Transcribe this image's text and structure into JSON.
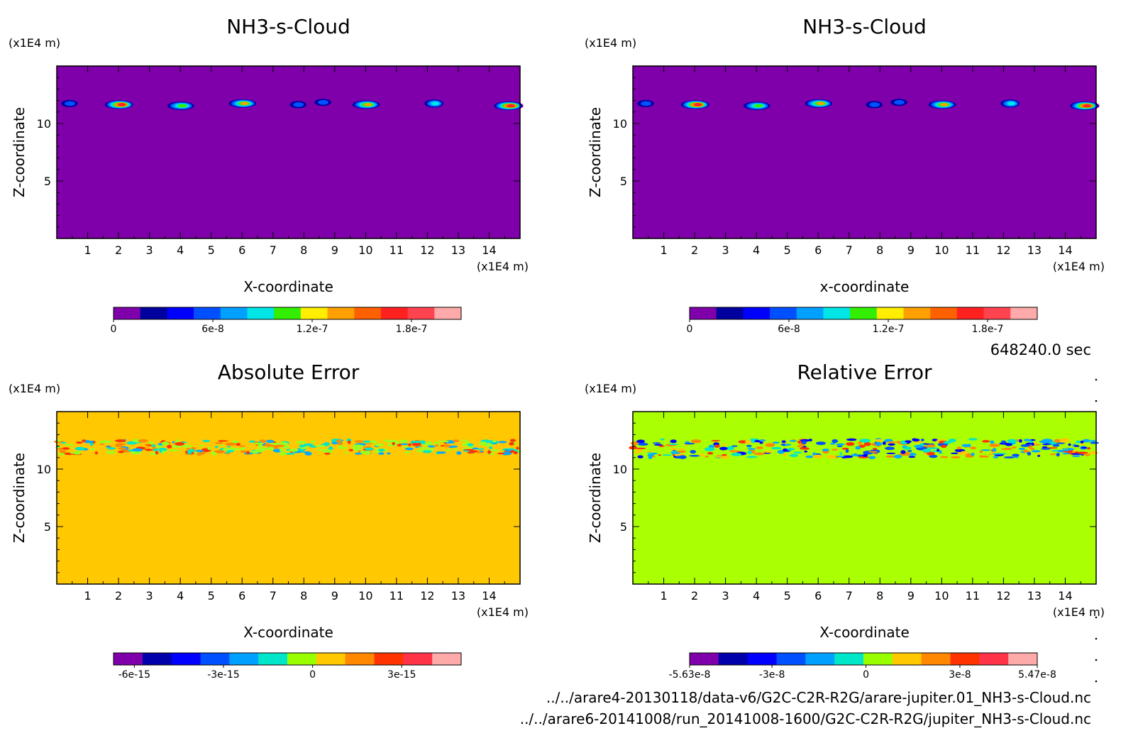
{
  "figure": {
    "time_label": "648240.0 sec",
    "file_lines": [
      "../../arare4-20130118/data-v6/G2C-C2R-R2G/arare-jupiter.01_NH3-s-Cloud.nc",
      "../../arare6-20141008/run_20141008-1600/G2C-C2R-R2G/jupiter_NH3-s-Cloud.nc"
    ]
  },
  "chart_data": [
    {
      "type": "heatmap",
      "title": "NH3-s-Cloud",
      "xlabel": "X-coordinate",
      "ylabel": "Z-coordinate",
      "x_unit": "(x1E4 m)",
      "y_unit": "(x1E4 m)",
      "xlim": [
        0,
        15
      ],
      "ylim": [
        0,
        15
      ],
      "x_ticks": [
        1,
        2,
        3,
        4,
        5,
        6,
        7,
        8,
        9,
        10,
        11,
        12,
        13,
        14
      ],
      "y_ticks": [
        5,
        10
      ],
      "background_color": "#7f00aa",
      "clouds": [
        {
          "x": 0.4,
          "z": 11.8,
          "peak": 6e-08
        },
        {
          "x": 2.0,
          "z": 11.7,
          "peak": 1.8e-07
        },
        {
          "x": 4.0,
          "z": 11.6,
          "peak": 1.2e-07
        },
        {
          "x": 6.0,
          "z": 11.8,
          "peak": 1.4e-07
        },
        {
          "x": 7.8,
          "z": 11.7,
          "peak": 6e-08
        },
        {
          "x": 8.6,
          "z": 11.9,
          "peak": 6e-08
        },
        {
          "x": 10.0,
          "z": 11.7,
          "peak": 1.3e-07
        },
        {
          "x": 12.2,
          "z": 11.8,
          "peak": 9e-08
        },
        {
          "x": 14.6,
          "z": 11.6,
          "peak": 1.8e-07
        }
      ],
      "colorbar": {
        "colors": [
          "#7f00aa",
          "#00009f",
          "#0000ff",
          "#0050ff",
          "#00a0ff",
          "#00e6e6",
          "#33ee00",
          "#ffee00",
          "#ffa000",
          "#ff6000",
          "#ff2020",
          "#ff4450",
          "#ffaaaa"
        ],
        "range": [
          0,
          2.1e-07
        ],
        "ticks": [
          {
            "value": 0,
            "label": "0"
          },
          {
            "value": 6e-08,
            "label": "6e-8"
          },
          {
            "value": 1.2e-07,
            "label": "1.2e-7"
          },
          {
            "value": 1.8e-07,
            "label": "1.8e-7"
          }
        ]
      }
    },
    {
      "type": "heatmap",
      "title": "NH3-s-Cloud",
      "xlabel": "x-coordinate",
      "ylabel": "Z-coordinate",
      "x_unit": "(x1E4 m)",
      "y_unit": "(x1E4 m)",
      "xlim": [
        0,
        15
      ],
      "ylim": [
        0,
        15
      ],
      "x_ticks": [
        1,
        2,
        3,
        4,
        5,
        6,
        7,
        8,
        9,
        10,
        11,
        12,
        13,
        14
      ],
      "y_ticks": [
        5,
        10
      ],
      "background_color": "#7f00aa",
      "clouds": [
        {
          "x": 0.4,
          "z": 11.8,
          "peak": 6e-08
        },
        {
          "x": 2.0,
          "z": 11.7,
          "peak": 1.8e-07
        },
        {
          "x": 4.0,
          "z": 11.6,
          "peak": 1.2e-07
        },
        {
          "x": 6.0,
          "z": 11.8,
          "peak": 1.4e-07
        },
        {
          "x": 7.8,
          "z": 11.7,
          "peak": 6e-08
        },
        {
          "x": 8.6,
          "z": 11.9,
          "peak": 6e-08
        },
        {
          "x": 10.0,
          "z": 11.7,
          "peak": 1.3e-07
        },
        {
          "x": 12.2,
          "z": 11.8,
          "peak": 9e-08
        },
        {
          "x": 14.6,
          "z": 11.6,
          "peak": 1.8e-07
        }
      ],
      "colorbar": {
        "colors": [
          "#7f00aa",
          "#00009f",
          "#0000ff",
          "#0050ff",
          "#00a0ff",
          "#00e6e6",
          "#33ee00",
          "#ffee00",
          "#ffa000",
          "#ff6000",
          "#ff2020",
          "#ff4450",
          "#ffaaaa"
        ],
        "range": [
          0,
          2.1e-07
        ],
        "ticks": [
          {
            "value": 0,
            "label": "0"
          },
          {
            "value": 6e-08,
            "label": "6e-8"
          },
          {
            "value": 1.2e-07,
            "label": "1.2e-7"
          },
          {
            "value": 1.8e-07,
            "label": "1.8e-7"
          }
        ]
      }
    },
    {
      "type": "heatmap",
      "title": "Absolute Error",
      "xlabel": "X-coordinate",
      "ylabel": "Z-coordinate",
      "x_unit": "(x1E4 m)",
      "y_unit": "(x1E4 m)",
      "xlim": [
        0,
        15
      ],
      "ylim": [
        0,
        15
      ],
      "x_ticks": [
        1,
        2,
        3,
        4,
        5,
        6,
        7,
        8,
        9,
        10,
        11,
        12,
        13,
        14
      ],
      "y_ticks": [
        5,
        10
      ],
      "background_color": "#ffc800",
      "noise_band_z": [
        11.3,
        12.5
      ],
      "noise_colors": [
        "#99ff22",
        "#99ff22",
        "#99ff22",
        "#00e6c8",
        "#00aaff",
        "#ff3300",
        "#ff8800"
      ],
      "colorbar": {
        "colors": [
          "#7f00aa",
          "#0000aa",
          "#0000ff",
          "#0050ff",
          "#00a0ff",
          "#00e6c8",
          "#99ff00",
          "#ffc800",
          "#ff8800",
          "#ff3300",
          "#ff3348",
          "#ffaaaa"
        ],
        "range": [
          -6.7e-15,
          5e-15
        ],
        "ticks": [
          {
            "value": -6e-15,
            "label": "-6e-15"
          },
          {
            "value": -3e-15,
            "label": "-3e-15"
          },
          {
            "value": 0,
            "label": "0"
          },
          {
            "value": 3e-15,
            "label": "3e-15"
          }
        ]
      }
    },
    {
      "type": "heatmap",
      "title": "Relative Error",
      "xlabel": "X-coordinate",
      "ylabel": "Z-coordinate",
      "x_unit": "(x1E4 m)",
      "y_unit": "(x1E4 m)",
      "xlim": [
        0,
        15
      ],
      "ylim": [
        0,
        15
      ],
      "x_ticks": [
        1,
        2,
        3,
        4,
        5,
        6,
        7,
        8,
        9,
        10,
        11,
        12,
        13,
        14
      ],
      "y_ticks": [
        5,
        10
      ],
      "background_color": "#aaff00",
      "noise_band_z": [
        11.0,
        12.6
      ],
      "noise_colors": [
        "#00aaff",
        "#0050ff",
        "#ff3300",
        "#ff8800",
        "#00e6c8",
        "#ffc800",
        "#0000ff"
      ],
      "colorbar": {
        "colors": [
          "#7f00aa",
          "#0000aa",
          "#0000ff",
          "#0050ff",
          "#00a0ff",
          "#00e6c8",
          "#99ff00",
          "#ffc800",
          "#ff8800",
          "#ff3300",
          "#ff3348",
          "#ffaaaa"
        ],
        "range": [
          -5.63e-08,
          5.47e-08
        ],
        "ticks": [
          {
            "value": -5.63e-08,
            "label": "-5.63e-8"
          },
          {
            "value": -3e-08,
            "label": "-3e-8"
          },
          {
            "value": 0,
            "label": "0"
          },
          {
            "value": 3e-08,
            "label": "3e-8"
          },
          {
            "value": 5.47e-08,
            "label": "5.47e-8"
          }
        ]
      }
    }
  ]
}
